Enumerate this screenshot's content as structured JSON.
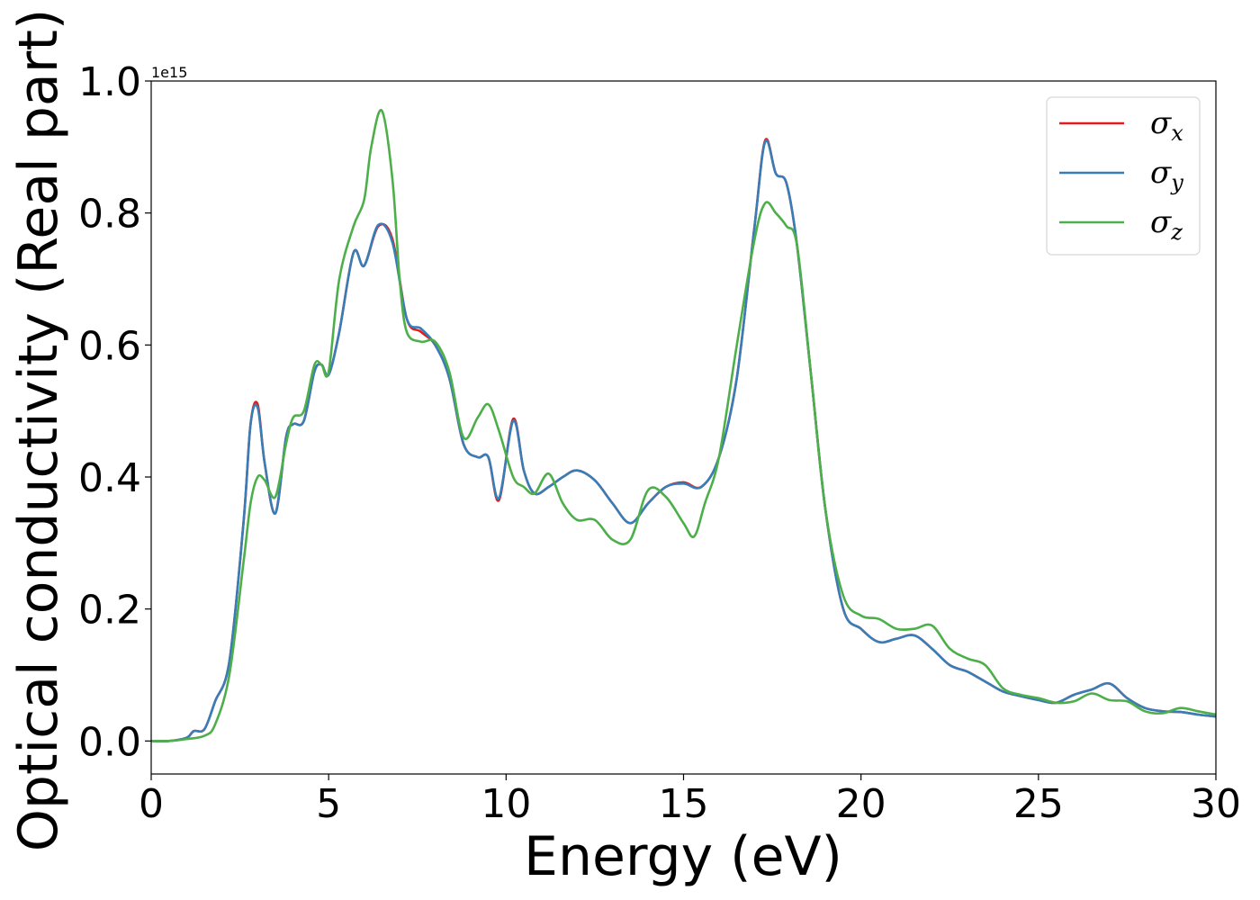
{
  "chart_data": {
    "type": "line",
    "xlabel": "Energy (eV)",
    "ylabel": "Optical conductivity (Real part)",
    "y_offset_text": "1e15",
    "xlim": [
      0,
      30
    ],
    "ylim": [
      -0.05,
      1.0
    ],
    "x_ticks": [
      0,
      5,
      10,
      15,
      20,
      25,
      30
    ],
    "x_tick_labels": [
      "0",
      "5",
      "10",
      "15",
      "20",
      "25",
      "30"
    ],
    "y_ticks": [
      0.0,
      0.2,
      0.4,
      0.6,
      0.8,
      1.0
    ],
    "y_tick_labels": [
      "0.0",
      "0.2",
      "0.4",
      "0.6",
      "0.8",
      "1.0"
    ],
    "grid": false,
    "legend_position": "top-right",
    "series": [
      {
        "name": "σx",
        "legend_base": "σ",
        "legend_sub": "x",
        "color": "#e41a1c",
        "x": [
          0,
          0.5,
          1.0,
          1.2,
          1.5,
          1.8,
          2.2,
          2.6,
          2.8,
          3.0,
          3.2,
          3.5,
          3.8,
          4.0,
          4.3,
          4.6,
          4.8,
          5.0,
          5.3,
          5.7,
          6.0,
          6.4,
          6.8,
          7.2,
          7.6,
          8.0,
          8.4,
          8.8,
          9.2,
          9.5,
          9.8,
          10.2,
          10.5,
          10.8,
          11.2,
          11.6,
          12.0,
          12.5,
          13.0,
          13.5,
          14.0,
          14.5,
          15.0,
          15.5,
          16.0,
          16.5,
          17.0,
          17.3,
          17.6,
          17.9,
          18.2,
          18.6,
          19.0,
          19.5,
          20.0,
          20.5,
          21.0,
          21.5,
          22.0,
          22.5,
          23.0,
          23.5,
          24.0,
          24.5,
          25.0,
          25.5,
          26.0,
          26.5,
          27.0,
          27.5,
          28.0,
          28.5,
          29.0,
          29.5,
          30.0
        ],
        "y": [
          0.0,
          0.0,
          0.005,
          0.015,
          0.018,
          0.06,
          0.12,
          0.33,
          0.48,
          0.51,
          0.42,
          0.345,
          0.46,
          0.48,
          0.485,
          0.56,
          0.57,
          0.555,
          0.62,
          0.74,
          0.72,
          0.78,
          0.76,
          0.64,
          0.62,
          0.6,
          0.55,
          0.45,
          0.43,
          0.43,
          0.365,
          0.488,
          0.41,
          0.375,
          0.385,
          0.4,
          0.41,
          0.395,
          0.36,
          0.33,
          0.36,
          0.385,
          0.392,
          0.385,
          0.43,
          0.55,
          0.78,
          0.91,
          0.86,
          0.845,
          0.75,
          0.55,
          0.35,
          0.2,
          0.17,
          0.15,
          0.155,
          0.16,
          0.14,
          0.115,
          0.105,
          0.09,
          0.075,
          0.068,
          0.062,
          0.058,
          0.07,
          0.078,
          0.087,
          0.065,
          0.05,
          0.045,
          0.044,
          0.04,
          0.037
        ]
      },
      {
        "name": "σy",
        "legend_base": "σ",
        "legend_sub": "y",
        "color": "#377eb8",
        "x": [
          0,
          0.5,
          1.0,
          1.2,
          1.5,
          1.8,
          2.2,
          2.6,
          2.8,
          3.0,
          3.2,
          3.5,
          3.8,
          4.0,
          4.3,
          4.6,
          4.8,
          5.0,
          5.3,
          5.7,
          6.0,
          6.4,
          6.8,
          7.2,
          7.6,
          8.0,
          8.4,
          8.8,
          9.2,
          9.5,
          9.8,
          10.2,
          10.5,
          10.8,
          11.2,
          11.6,
          12.0,
          12.5,
          13.0,
          13.5,
          14.0,
          14.5,
          15.0,
          15.5,
          16.0,
          16.5,
          17.0,
          17.3,
          17.6,
          17.9,
          18.2,
          18.6,
          19.0,
          19.5,
          20.0,
          20.5,
          21.0,
          21.5,
          22.0,
          22.5,
          23.0,
          23.5,
          24.0,
          24.5,
          25.0,
          25.5,
          26.0,
          26.5,
          27.0,
          27.5,
          28.0,
          28.5,
          29.0,
          29.5,
          30.0
        ],
        "y": [
          0.0,
          0.0,
          0.005,
          0.015,
          0.018,
          0.06,
          0.12,
          0.33,
          0.48,
          0.505,
          0.42,
          0.345,
          0.46,
          0.48,
          0.485,
          0.56,
          0.57,
          0.555,
          0.62,
          0.74,
          0.72,
          0.782,
          0.755,
          0.64,
          0.625,
          0.6,
          0.55,
          0.45,
          0.43,
          0.43,
          0.368,
          0.485,
          0.41,
          0.375,
          0.385,
          0.4,
          0.41,
          0.395,
          0.36,
          0.33,
          0.36,
          0.385,
          0.39,
          0.385,
          0.43,
          0.55,
          0.78,
          0.908,
          0.86,
          0.845,
          0.75,
          0.55,
          0.35,
          0.2,
          0.17,
          0.15,
          0.155,
          0.16,
          0.14,
          0.115,
          0.105,
          0.09,
          0.075,
          0.068,
          0.062,
          0.058,
          0.07,
          0.078,
          0.087,
          0.065,
          0.05,
          0.045,
          0.044,
          0.04,
          0.037
        ]
      },
      {
        "name": "σz",
        "legend_base": "σ",
        "legend_sub": "z",
        "color": "#4daf4a",
        "x": [
          0,
          0.5,
          1.0,
          1.5,
          1.8,
          2.2,
          2.6,
          2.8,
          3.0,
          3.2,
          3.5,
          3.8,
          4.0,
          4.3,
          4.6,
          4.8,
          5.0,
          5.3,
          5.7,
          6.0,
          6.2,
          6.5,
          6.8,
          7.0,
          7.2,
          7.6,
          8.0,
          8.4,
          8.8,
          9.2,
          9.5,
          9.8,
          10.2,
          10.5,
          10.8,
          11.2,
          11.6,
          12.0,
          12.5,
          13.0,
          13.5,
          14.0,
          14.5,
          15.0,
          15.3,
          15.6,
          16.0,
          16.5,
          17.0,
          17.3,
          17.6,
          17.9,
          18.2,
          18.6,
          19.0,
          19.5,
          20.0,
          20.5,
          21.0,
          21.5,
          22.0,
          22.5,
          23.0,
          23.5,
          24.0,
          24.5,
          25.0,
          25.5,
          26.0,
          26.5,
          27.0,
          27.5,
          28.0,
          28.5,
          29.0,
          29.5,
          30.0
        ],
        "y": [
          0.0,
          0.0,
          0.003,
          0.008,
          0.025,
          0.1,
          0.27,
          0.36,
          0.4,
          0.395,
          0.37,
          0.45,
          0.49,
          0.5,
          0.57,
          0.57,
          0.56,
          0.7,
          0.78,
          0.82,
          0.9,
          0.955,
          0.85,
          0.7,
          0.62,
          0.605,
          0.605,
          0.56,
          0.46,
          0.49,
          0.51,
          0.47,
          0.4,
          0.385,
          0.375,
          0.405,
          0.36,
          0.335,
          0.335,
          0.305,
          0.305,
          0.38,
          0.37,
          0.33,
          0.31,
          0.36,
          0.43,
          0.6,
          0.76,
          0.815,
          0.8,
          0.78,
          0.75,
          0.55,
          0.35,
          0.22,
          0.19,
          0.185,
          0.17,
          0.17,
          0.175,
          0.14,
          0.125,
          0.115,
          0.08,
          0.07,
          0.065,
          0.058,
          0.06,
          0.072,
          0.062,
          0.06,
          0.045,
          0.042,
          0.05,
          0.045,
          0.04
        ]
      }
    ]
  }
}
